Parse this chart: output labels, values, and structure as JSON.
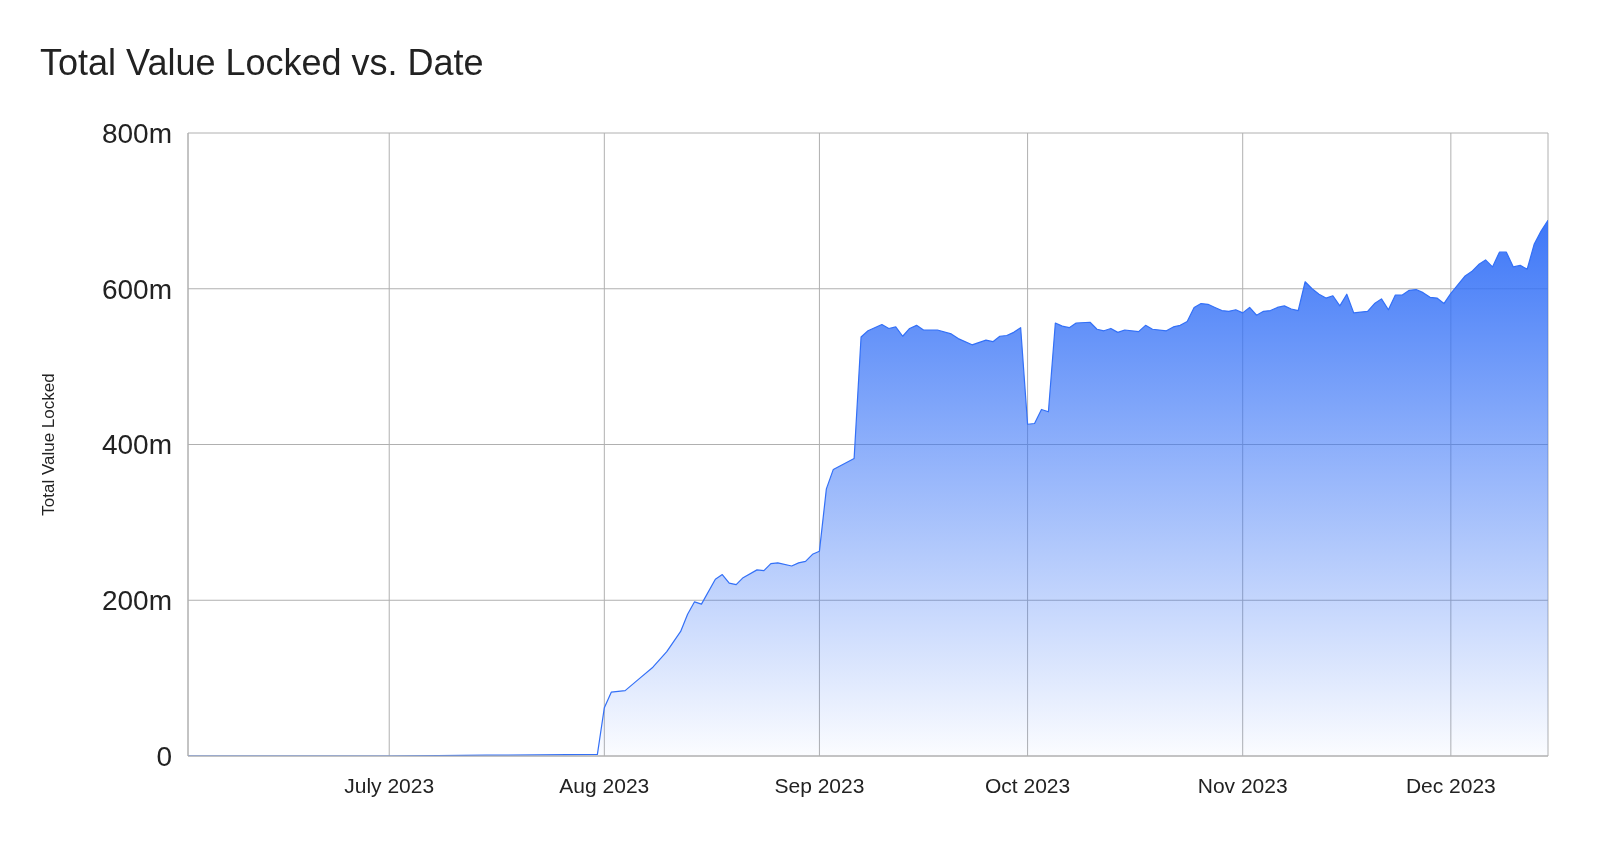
{
  "chart_data": {
    "type": "area",
    "title": "Total Value Locked vs. Date",
    "ylabel": "Total Value Locked",
    "x": [
      "2023-06-02",
      "2023-07-01",
      "2023-07-15",
      "2023-07-31",
      "2023-08-01",
      "2023-08-02",
      "2023-08-04",
      "2023-08-06",
      "2023-08-08",
      "2023-08-10",
      "2023-08-12",
      "2023-08-13",
      "2023-08-14",
      "2023-08-15",
      "2023-08-17",
      "2023-08-18",
      "2023-08-19",
      "2023-08-20",
      "2023-08-21",
      "2023-08-23",
      "2023-08-24",
      "2023-08-25",
      "2023-08-26",
      "2023-08-28",
      "2023-08-29",
      "2023-08-30",
      "2023-08-31",
      "2023-09-01",
      "2023-09-02",
      "2023-09-03",
      "2023-09-06",
      "2023-09-07",
      "2023-09-08",
      "2023-09-10",
      "2023-09-11",
      "2023-09-12",
      "2023-09-13",
      "2023-09-14",
      "2023-09-15",
      "2023-09-16",
      "2023-09-18",
      "2023-09-20",
      "2023-09-21",
      "2023-09-23",
      "2023-09-25",
      "2023-09-26",
      "2023-09-27",
      "2023-09-28",
      "2023-09-29",
      "2023-09-30",
      "2023-10-01",
      "2023-10-02",
      "2023-10-03",
      "2023-10-04",
      "2023-10-05",
      "2023-10-06",
      "2023-10-07",
      "2023-10-08",
      "2023-10-10",
      "2023-10-11",
      "2023-10-12",
      "2023-10-13",
      "2023-10-14",
      "2023-10-15",
      "2023-10-17",
      "2023-10-18",
      "2023-10-19",
      "2023-10-21",
      "2023-10-22",
      "2023-10-23",
      "2023-10-24",
      "2023-10-25",
      "2023-10-26",
      "2023-10-27",
      "2023-10-28",
      "2023-10-29",
      "2023-10-30",
      "2023-10-31",
      "2023-11-01",
      "2023-11-02",
      "2023-11-03",
      "2023-11-04",
      "2023-11-05",
      "2023-11-06",
      "2023-11-07",
      "2023-11-08",
      "2023-11-09",
      "2023-11-10",
      "2023-11-11",
      "2023-11-12",
      "2023-11-13",
      "2023-11-14",
      "2023-11-15",
      "2023-11-16",
      "2023-11-17",
      "2023-11-19",
      "2023-11-20",
      "2023-11-21",
      "2023-11-22",
      "2023-11-23",
      "2023-11-24",
      "2023-11-25",
      "2023-11-26",
      "2023-11-27",
      "2023-11-28",
      "2023-11-29",
      "2023-11-30",
      "2023-12-01",
      "2023-12-02",
      "2023-12-03",
      "2023-12-04",
      "2023-12-05",
      "2023-12-06",
      "2023-12-07",
      "2023-12-08",
      "2023-12-09",
      "2023-12-10",
      "2023-12-11",
      "2023-12-12",
      "2023-12-13",
      "2023-12-14",
      "2023-12-15"
    ],
    "series": [
      {
        "color": "#3370f7",
        "values": [
          0,
          0,
          1,
          2,
          62,
          82,
          84,
          99,
          114,
          134,
          160,
          182,
          198,
          195,
          227,
          233,
          222,
          220,
          229,
          239,
          238,
          247,
          248,
          244,
          248,
          250,
          259,
          263,
          343,
          368,
          382,
          538,
          546,
          554,
          549,
          551,
          539,
          549,
          553,
          547,
          547,
          542,
          536,
          528,
          534,
          532,
          539,
          540,
          544,
          550,
          426,
          427,
          445,
          442,
          556,
          552,
          550,
          556,
          557,
          548,
          546,
          549,
          544,
          547,
          545,
          553,
          548,
          546,
          551,
          553,
          558,
          576,
          581,
          580,
          576,
          572,
          571,
          573,
          569,
          576,
          566,
          571,
          572,
          576,
          578,
          574,
          572,
          609,
          600,
          593,
          588,
          591,
          578,
          593,
          569,
          571,
          581,
          587,
          573,
          592,
          592,
          598,
          599,
          595,
          589,
          588,
          581,
          594,
          605,
          616,
          622,
          631,
          637,
          628,
          647,
          647,
          628,
          630,
          625,
          657,
          674,
          688
        ]
      }
    ],
    "xlim": [
      "2023-06-02",
      "2023-12-15"
    ],
    "xticks": [
      {
        "value": "2023-07-01",
        "label": "July 2023"
      },
      {
        "value": "2023-08-01",
        "label": "Aug 2023"
      },
      {
        "value": "2023-09-01",
        "label": "Sep 2023"
      },
      {
        "value": "2023-10-01",
        "label": "Oct 2023"
      },
      {
        "value": "2023-11-01",
        "label": "Nov 2023"
      },
      {
        "value": "2023-12-01",
        "label": "Dec 2023"
      }
    ],
    "ylim": [
      0,
      800
    ],
    "yticks": [
      0,
      {
        "value": 200,
        "label": "200m"
      },
      {
        "value": 400,
        "label": "400m"
      },
      {
        "value": 600,
        "label": "600m"
      },
      {
        "value": 800,
        "label": "800m"
      }
    ],
    "grid": true,
    "legend": false
  }
}
